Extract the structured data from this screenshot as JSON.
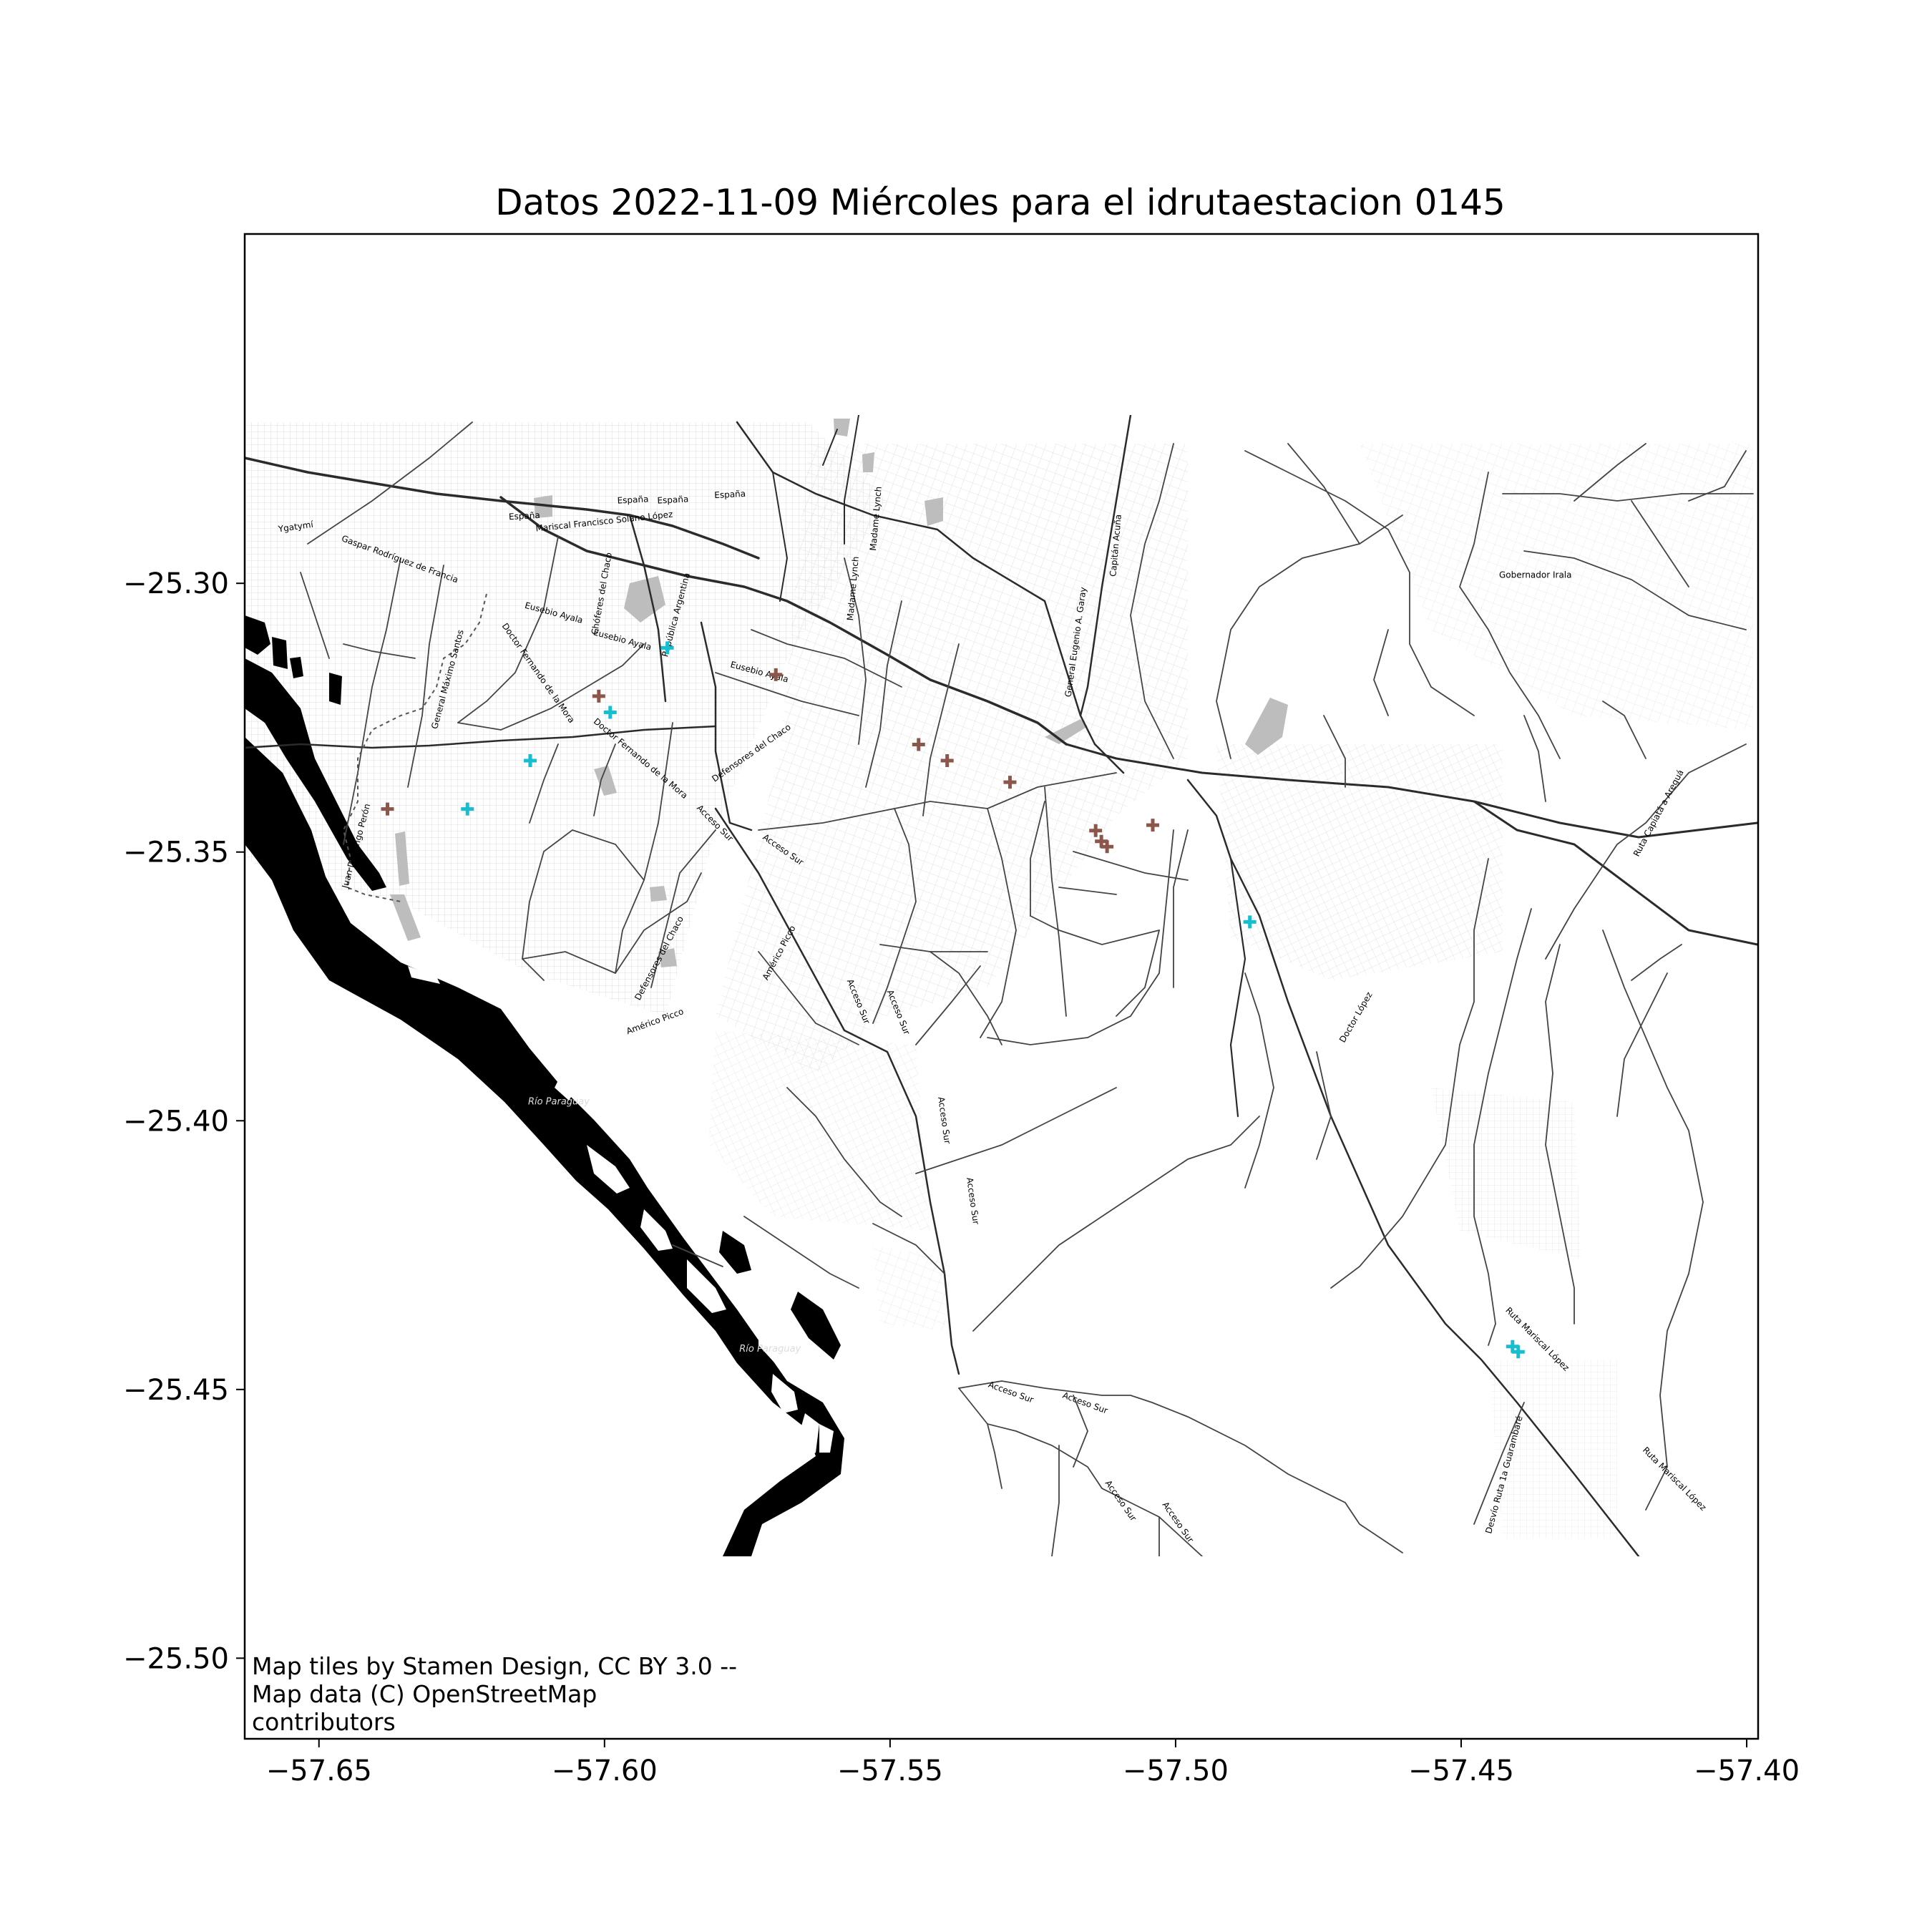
{
  "title": "Datos 2022-11-09 Miércoles para el idrutaestacion 0145",
  "attribution": [
    "Map tiles by Stamen Design, CC BY 3.0 --",
    "Map data (C) OpenStreetMap",
    "contributors"
  ],
  "colors": {
    "brown": "#8c564b",
    "cyan": "#17becf",
    "frame": "#000000",
    "road": "#333333",
    "minor_road": "#cccccc",
    "water": "#000000",
    "park": "#bbbbbb"
  },
  "map_data": {
    "type": "scatter-on-basemap",
    "basemap": "Stamen Toner Lite",
    "xlim": [
      -57.663,
      -57.398
    ],
    "ylim": [
      -25.515,
      -25.235
    ],
    "xticks": [
      -57.65,
      -57.6,
      -57.55,
      -57.5,
      -57.45,
      -57.4
    ],
    "yticks": [
      -25.3,
      -25.35,
      -25.4,
      -25.45,
      -25.5
    ],
    "xtick_labels": [
      "−57.65",
      "−57.60",
      "−57.55",
      "−57.50",
      "−57.45",
      "−57.40"
    ],
    "ytick_labels": [
      "−25.30",
      "−25.35",
      "−25.40",
      "−25.45",
      "−25.50"
    ],
    "tile_extent": {
      "lon": [
        -57.663,
        -57.398
      ],
      "lat": [
        -25.283,
        -25.482
      ]
    },
    "series": [
      {
        "color": "brown",
        "marker": "plus",
        "points": [
          [
            -57.638,
            -25.342
          ],
          [
            -57.601,
            -25.321
          ],
          [
            -57.57,
            -25.317
          ],
          [
            -57.545,
            -25.33
          ],
          [
            -57.54,
            -25.333
          ],
          [
            -57.529,
            -25.337
          ],
          [
            -57.514,
            -25.346
          ],
          [
            -57.513,
            -25.348
          ],
          [
            -57.512,
            -25.349
          ],
          [
            -57.504,
            -25.345
          ]
        ]
      },
      {
        "color": "cyan",
        "marker": "plus",
        "points": [
          [
            -57.624,
            -25.342
          ],
          [
            -57.613,
            -25.333
          ],
          [
            -57.599,
            -25.324
          ],
          [
            -57.589,
            -25.312
          ],
          [
            -57.487,
            -25.363
          ],
          [
            -57.441,
            -25.442
          ],
          [
            -57.44,
            -25.443
          ]
        ]
      }
    ],
    "street_labels": [
      {
        "text": "Mariscal Francisco Solano López",
        "lon": -57.6,
        "lat": -25.289,
        "rot": -6,
        "size": 14
      },
      {
        "text": "España",
        "lon": -57.614,
        "lat": -25.288,
        "rot": -3,
        "size": 11
      },
      {
        "text": "España",
        "lon": -57.595,
        "lat": -25.285,
        "rot": -3,
        "size": 11
      },
      {
        "text": "España",
        "lon": -57.588,
        "lat": -25.285,
        "rot": -3,
        "size": 11
      },
      {
        "text": "España",
        "lon": -57.578,
        "lat": -25.284,
        "rot": -3,
        "size": 11
      },
      {
        "text": "Ygatymí",
        "lon": -57.654,
        "lat": -25.29,
        "rot": -8,
        "size": 11
      },
      {
        "text": "Gaspar Rodríguez de Francia",
        "lon": -57.636,
        "lat": -25.296,
        "rot": 20,
        "size": 11
      },
      {
        "text": "Eusebio Ayala",
        "lon": -57.609,
        "lat": -25.306,
        "rot": 15,
        "size": 11
      },
      {
        "text": "Eusebio Ayala",
        "lon": -57.597,
        "lat": -25.311,
        "rot": 15,
        "size": 11
      },
      {
        "text": "Eusebio Ayala",
        "lon": -57.573,
        "lat": -25.317,
        "rot": 15,
        "size": 11
      },
      {
        "text": "Doctor Fernando de la Mora",
        "lon": -57.612,
        "lat": -25.317,
        "rot": 55,
        "size": 11
      },
      {
        "text": "Doctor Fernando de la Mora",
        "lon": -57.594,
        "lat": -25.333,
        "rot": 40,
        "size": 11
      },
      {
        "text": "Defensores del Chaco",
        "lon": -57.574,
        "lat": -25.332,
        "rot": -35,
        "size": 11
      },
      {
        "text": "Defensores del Chaco",
        "lon": -57.59,
        "lat": -25.37,
        "rot": -62,
        "size": 11
      },
      {
        "text": "Acceso Sur",
        "lon": -57.581,
        "lat": -25.345,
        "rot": 45,
        "size": 11
      },
      {
        "text": "Acceso Sur",
        "lon": -57.569,
        "lat": -25.35,
        "rot": 35,
        "size": 11
      },
      {
        "text": "Acceso Sur",
        "lon": -57.556,
        "lat": -25.378,
        "rot": 68,
        "size": 11
      },
      {
        "text": "Acceso Sur",
        "lon": -57.549,
        "lat": -25.38,
        "rot": 68,
        "size": 11
      },
      {
        "text": "Acceso Sur",
        "lon": -57.541,
        "lat": -25.4,
        "rot": 82,
        "size": 11
      },
      {
        "text": "Acceso Sur",
        "lon": -57.536,
        "lat": -25.415,
        "rot": 82,
        "size": 11
      },
      {
        "text": "Acceso Sur",
        "lon": -57.529,
        "lat": -25.451,
        "rot": 20,
        "size": 11
      },
      {
        "text": "Acceso Sur",
        "lon": -57.516,
        "lat": -25.453,
        "rot": 20,
        "size": 11
      },
      {
        "text": "Acceso Sur",
        "lon": -57.51,
        "lat": -25.471,
        "rot": 55,
        "size": 11
      },
      {
        "text": "Acceso Sur",
        "lon": -57.5,
        "lat": -25.475,
        "rot": 55,
        "size": 11
      },
      {
        "text": "Américo Picco",
        "lon": -57.591,
        "lat": -25.382,
        "rot": -20,
        "size": 11
      },
      {
        "text": "Américo Picco",
        "lon": -57.569,
        "lat": -25.369,
        "rot": -62,
        "size": 11
      },
      {
        "text": "General Máximo Santos",
        "lon": -57.627,
        "lat": -25.318,
        "rot": -75,
        "size": 11
      },
      {
        "text": "Juan Domingo Perón",
        "lon": -57.643,
        "lat": -25.349,
        "rot": -75,
        "size": 11
      },
      {
        "text": "República Argentina",
        "lon": -57.587,
        "lat": -25.306,
        "rot": -75,
        "size": 11
      },
      {
        "text": "Chóferes del Chaco",
        "lon": -57.6,
        "lat": -25.302,
        "rot": -80,
        "size": 11
      },
      {
        "text": "Madame Lynch",
        "lon": -57.556,
        "lat": -25.301,
        "rot": -85,
        "size": 11
      },
      {
        "text": "Madame Lynch",
        "lon": -57.552,
        "lat": -25.288,
        "rot": -85,
        "size": 11
      },
      {
        "text": "General Eugenio A. Garay",
        "lon": -57.517,
        "lat": -25.311,
        "rot": -82,
        "size": 11
      },
      {
        "text": "Capitán Acuña",
        "lon": -57.51,
        "lat": -25.293,
        "rot": -85,
        "size": 11
      },
      {
        "text": "Gobernador Irala",
        "lon": -57.437,
        "lat": -25.299,
        "rot": 0,
        "size": 11
      },
      {
        "text": "Ruta Capiatá a Areguá",
        "lon": -57.415,
        "lat": -25.343,
        "rot": -62,
        "size": 11
      },
      {
        "text": "Doctor López",
        "lon": -57.468,
        "lat": -25.381,
        "rot": -60,
        "size": 11
      },
      {
        "text": "Ruta Mariscal López",
        "lon": -57.437,
        "lat": -25.441,
        "rot": 45,
        "size": 14
      },
      {
        "text": "Ruta Mariscal López",
        "lon": -57.413,
        "lat": -25.467,
        "rot": 45,
        "size": 14
      },
      {
        "text": "Desvío Ruta 1a Guarambaré",
        "lon": -57.442,
        "lat": -25.466,
        "rot": -75,
        "size": 11
      }
    ],
    "river_labels": [
      {
        "text": "Río Paraguay",
        "lon": -57.608,
        "lat": -25.397,
        "rot": 0
      },
      {
        "text": "Río Paraguay",
        "lon": -57.571,
        "lat": -25.443,
        "rot": 0
      }
    ]
  }
}
